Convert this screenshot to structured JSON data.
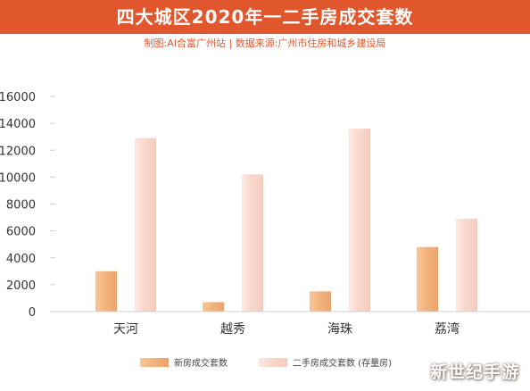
{
  "header": {
    "title": "四大城区2020年一二手房成交套数",
    "source": "制图:AI合富广州站 | 数据来源:广州市住房和城乡建设局"
  },
  "watermark": "新世纪手游",
  "colors": {
    "banner": "#e0572e",
    "new_home": "#f2b27c",
    "second_hand": "#f9d6cc"
  },
  "chart_data": {
    "type": "bar",
    "categories": [
      "天河",
      "越秀",
      "海珠",
      "荔湾"
    ],
    "series": [
      {
        "name": "新房成交套数",
        "values": [
          3000,
          700,
          1500,
          4800
        ]
      },
      {
        "name": "二手房成交套数 (存量房)",
        "values": [
          12900,
          10200,
          13600,
          6900
        ]
      }
    ],
    "y_ticks": [
      "0",
      "2000",
      "4000",
      "6000",
      "8000",
      "10000",
      "12000",
      "14000",
      "16000"
    ],
    "ylim": [
      0,
      16000
    ],
    "grid": false,
    "legend_position": "bottom-center"
  }
}
